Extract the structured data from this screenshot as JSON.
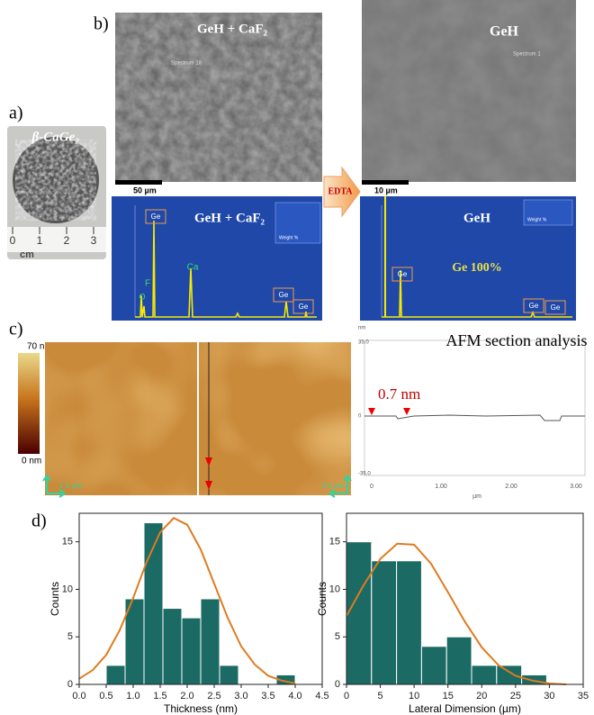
{
  "panels": {
    "a": "a)",
    "b": "b)",
    "c": "c)",
    "d": "d)"
  },
  "photo": {
    "label": "β-CaGe₂",
    "ruler": [
      "0",
      "1",
      "2",
      "3"
    ],
    "unit": "cm"
  },
  "sem": [
    {
      "title": "GeH + CaF₂",
      "spectrum": "Spectrum 18",
      "scale": "50 µm"
    },
    {
      "title": "GeH",
      "spectrum": "Spectrum 1",
      "scale": "10 µm"
    }
  ],
  "arrow": "EDTA",
  "eds": [
    {
      "title": "GeH + CaF₂",
      "peaks": [
        "Ge",
        "Ca",
        "F",
        "O",
        "Ge",
        "Ge"
      ],
      "legend": "Weight %"
    },
    {
      "title": "GeH",
      "note": "Ge 100%",
      "peaks": [
        "Ge",
        "Ge",
        "Ge"
      ],
      "legend": "Weight %"
    }
  ],
  "afm": {
    "colorbar": [
      "70 nm",
      "0 nm"
    ],
    "scales": [
      "1.1 µm",
      "3.1 µm"
    ],
    "profile_title": "AFM section analysis",
    "step": "0.7 nm",
    "x_ticks": [
      "0",
      "1.00",
      "2.00",
      "3.00"
    ],
    "x_unit": "µm",
    "y_ticks": [
      "35.0",
      "0",
      "-35.0"
    ],
    "y_unit": "nm"
  },
  "chart_data": [
    {
      "type": "histogram",
      "x_label": "Thickness (nm)",
      "y_label": "Counts",
      "color": "#1b6a64",
      "fit_color": "#e07b1f",
      "bins": [
        0.5,
        0.85,
        1.2,
        1.55,
        1.9,
        2.25,
        2.6,
        2.95,
        3.3,
        3.65,
        4.0
      ],
      "values": [
        2,
        9,
        17,
        8,
        7,
        9,
        2,
        0,
        0,
        1
      ],
      "fit_x": [
        0,
        0.25,
        0.5,
        0.75,
        1.0,
        1.25,
        1.5,
        1.75,
        2.0,
        2.25,
        2.5,
        2.75,
        3.0,
        3.25,
        3.5,
        3.75,
        4.0
      ],
      "fit_y": [
        0.6,
        1.5,
        3.1,
        5.7,
        9.1,
        12.9,
        16.0,
        17.5,
        16.8,
        14.2,
        10.6,
        7.0,
        4.0,
        2.1,
        0.9,
        0.4,
        0.1
      ],
      "xlim": [
        0,
        4.5
      ],
      "ylim": [
        0,
        18
      ],
      "xticks": [
        {
          "value": 0,
          "label": "0.0"
        },
        0.5,
        {
          "value": 1,
          "label": "1.0"
        },
        1.5,
        {
          "value": 2,
          "label": "2.0"
        },
        2.5,
        {
          "value": 3,
          "label": "3.0"
        },
        3.5,
        {
          "value": 4,
          "label": "4.0"
        },
        4.5
      ],
      "yticks": [
        0,
        5,
        10,
        15
      ]
    },
    {
      "type": "histogram",
      "x_label": "Lateral Dimension (µm)",
      "y_label": "Counts",
      "color": "#1b6a64",
      "fit_color": "#e07b1f",
      "bins": [
        0,
        3.7,
        7.4,
        11.1,
        14.8,
        18.5,
        22.2,
        25.9,
        29.6
      ],
      "values": [
        15,
        13,
        13,
        4,
        5,
        2,
        2,
        1
      ],
      "fit_x": [
        0,
        2.5,
        5,
        7.5,
        10,
        12.5,
        15,
        17.5,
        20,
        22.5,
        25,
        27.5,
        30,
        32.5
      ],
      "fit_y": [
        7.2,
        10.4,
        13.2,
        14.8,
        14.7,
        12.7,
        9.7,
        6.6,
        3.9,
        2.0,
        0.9,
        0.4,
        0.1,
        0.0
      ],
      "xlim": [
        0,
        35
      ],
      "ylim": [
        0,
        18
      ],
      "xticks": [
        0,
        5,
        10,
        15,
        20,
        25,
        30,
        35
      ],
      "yticks": [
        0,
        5,
        10,
        15
      ]
    }
  ]
}
